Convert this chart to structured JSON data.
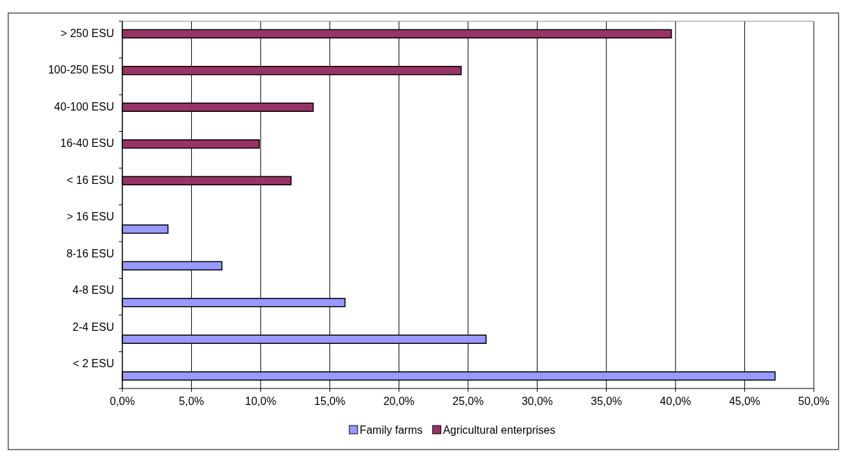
{
  "chart_data": {
    "type": "bar",
    "orientation": "horizontal",
    "categories": [
      "> 250 ESU",
      "100-250 ESU",
      "40-100 ESU",
      "16-40 ESU",
      "< 16 ESU",
      "> 16 ESU",
      "8-16 ESU",
      "4-8 ESU",
      "2-4 ESU",
      "< 2 ESU"
    ],
    "series": [
      {
        "name": "Family farms",
        "color": "#9999ff",
        "values": [
          null,
          null,
          null,
          null,
          null,
          3.3,
          7.2,
          16.1,
          26.3,
          47.2
        ]
      },
      {
        "name": "Agricultural enterprises",
        "color": "#993366",
        "values": [
          39.7,
          24.5,
          13.8,
          9.9,
          12.2,
          null,
          null,
          null,
          null,
          null
        ]
      }
    ],
    "xlim": [
      0,
      50
    ],
    "xticks": [
      {
        "value": 0,
        "label": "0,0%"
      },
      {
        "value": 5,
        "label": "5,0%"
      },
      {
        "value": 10,
        "label": "10,0%"
      },
      {
        "value": 15,
        "label": "15,0%"
      },
      {
        "value": 20,
        "label": "20,0%"
      },
      {
        "value": 25,
        "label": "25,0%"
      },
      {
        "value": 30,
        "label": "30,0%"
      },
      {
        "value": 35,
        "label": "35,0%"
      },
      {
        "value": 40,
        "label": "40,0%"
      },
      {
        "value": 45,
        "label": "45,0%"
      },
      {
        "value": 50,
        "label": "50,0%"
      }
    ],
    "grid": "x",
    "legend": "bottom"
  }
}
